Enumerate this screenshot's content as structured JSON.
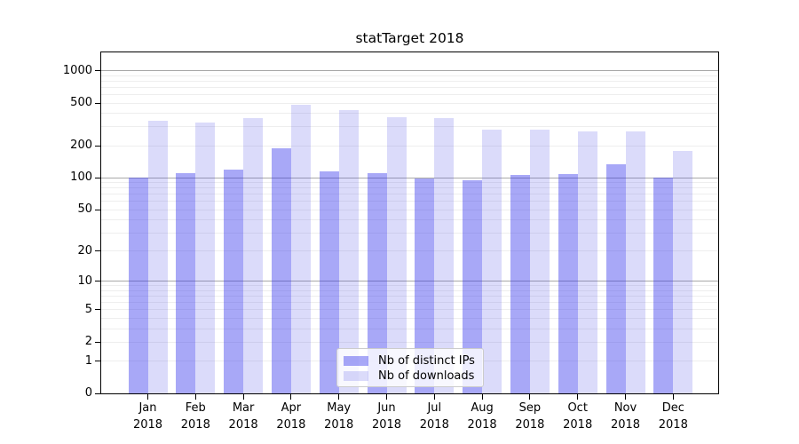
{
  "title": "statTarget 2018",
  "legend": {
    "items": [
      {
        "label": "Nb of distinct IPs",
        "color": "rgba(48,48,236,0.42)"
      },
      {
        "label": "Nb of downloads",
        "color": "rgba(75,75,230,0.20)"
      }
    ]
  },
  "colors": {
    "bar_distinct_ips": "#a8a8f7",
    "bar_downloads": "#dbdbfa",
    "grid_minor": "#eeeeee",
    "grid_major": "#a8a8a8",
    "spine": "#000000"
  },
  "chart_data": {
    "type": "bar",
    "title": "statTarget 2018",
    "categories": [
      "Jan 2018",
      "Feb 2018",
      "Mar 2018",
      "Apr 2018",
      "May 2018",
      "Jun 2018",
      "Jul 2018",
      "Aug 2018",
      "Sep 2018",
      "Oct 2018",
      "Nov 2018",
      "Dec 2018"
    ],
    "series": [
      {
        "name": "Nb of distinct IPs",
        "color": "rgba(48,48,236,0.42)",
        "values": [
          100,
          111,
          119,
          188,
          115,
          111,
          99,
          95,
          106,
          109,
          135,
          101
        ]
      },
      {
        "name": "Nb of downloads",
        "color": "rgba(75,75,230,0.20)",
        "values": [
          342,
          330,
          360,
          486,
          427,
          369,
          361,
          281,
          284,
          270,
          272,
          180
        ]
      }
    ],
    "xlabel": "",
    "ylabel": "",
    "yscale": "log1p",
    "ylim": [
      0,
      1480
    ],
    "yticks": [
      0,
      1,
      2,
      5,
      10,
      20,
      50,
      100,
      200,
      500,
      1000
    ],
    "grid_minor": [
      1,
      2,
      3,
      4,
      5,
      6,
      7,
      8,
      9,
      20,
      30,
      40,
      50,
      60,
      70,
      80,
      90,
      200,
      300,
      400,
      500,
      600,
      700,
      800,
      900
    ],
    "grid_major": [
      10,
      100,
      1000
    ],
    "grid": "horizontal",
    "legend_position": "lower-center-inside"
  }
}
